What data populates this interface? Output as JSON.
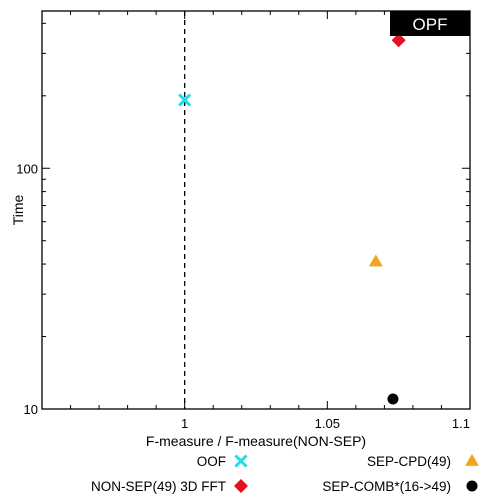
{
  "chart_data": {
    "type": "scatter",
    "title": "OPF",
    "xlabel": "F-measure / F-measure(NON-SEP)",
    "ylabel": "Time",
    "xlim": [
      0.95,
      1.1
    ],
    "ylim": [
      10,
      450
    ],
    "yscale": "log",
    "xticks": [
      1,
      1.05,
      1.1
    ],
    "xtick_labels": [
      "1",
      "1.05",
      "1.1"
    ],
    "yticks": [
      10,
      100
    ],
    "ytick_labels": [
      "10",
      "100"
    ],
    "reference_line": {
      "x": 1,
      "style": "dashed"
    },
    "grid": false,
    "legend_position": "bottom",
    "series": [
      {
        "name": "OOF",
        "marker": "x",
        "color": "#22dde8",
        "points": [
          {
            "x": 1.0,
            "y": 192
          }
        ]
      },
      {
        "name": "SEP-CPD(49)",
        "marker": "triangle",
        "color": "#f2a41e",
        "points": [
          {
            "x": 1.067,
            "y": 41
          }
        ]
      },
      {
        "name": "NON-SEP(49) 3D FFT",
        "marker": "diamond",
        "color": "#e5101c",
        "points": [
          {
            "x": 1.075,
            "y": 340
          }
        ]
      },
      {
        "name": "SEP-COMB*(16->49)",
        "marker": "circle",
        "color": "#000000",
        "points": [
          {
            "x": 1.073,
            "y": 11
          }
        ]
      }
    ]
  }
}
